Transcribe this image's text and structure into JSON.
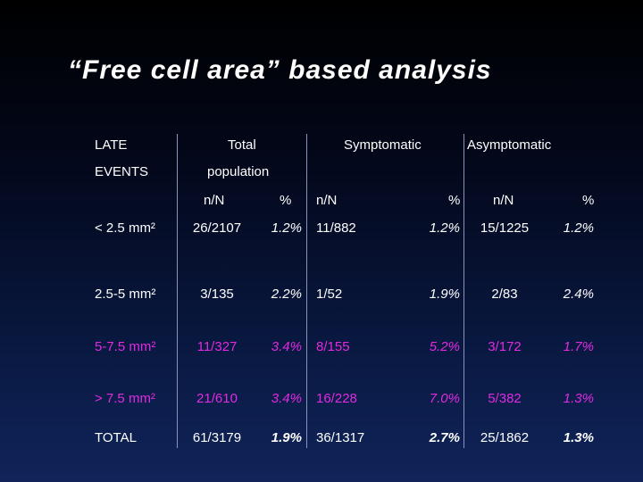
{
  "title": "“Free cell area” based analysis",
  "header": {
    "late": "LATE",
    "events": "EVENTS",
    "total": "Total",
    "population": "population",
    "symptomatic": "Symptomatic",
    "asymptomatic": "Asymptomatic",
    "nN": "n/N",
    "pct": "%"
  },
  "rows": [
    {
      "label": "< 2.5 mm²",
      "total_n": "26/2107",
      "total_pct": "1.2%",
      "sym_n": "11/882",
      "sym_pct": "1.2%",
      "asym_n": "15/1225",
      "asym_pct": "1.2%"
    },
    {
      "label": "2.5-5 mm²",
      "total_n": "3/135",
      "total_pct": "2.2%",
      "sym_n": "1/52",
      "sym_pct": "1.9%",
      "asym_n": "2/83",
      "asym_pct": "2.4%"
    },
    {
      "label": "5-7.5 mm²",
      "total_n": "11/327",
      "total_pct": "3.4%",
      "sym_n": "8/155",
      "sym_pct": "5.2%",
      "asym_n": "3/172",
      "asym_pct": "1.7%"
    },
    {
      "label": "> 7.5 mm²",
      "total_n": "21/610",
      "total_pct": "3.4%",
      "sym_n": "16/228",
      "sym_pct": "7.0%",
      "asym_n": "5/382",
      "asym_pct": "1.3%"
    },
    {
      "label": "TOTAL",
      "total_n": "61/3179",
      "total_pct": "1.9%",
      "sym_n": "36/1317",
      "sym_pct": "2.7%",
      "asym_n": "25/1862",
      "asym_pct": "1.3%"
    }
  ]
}
